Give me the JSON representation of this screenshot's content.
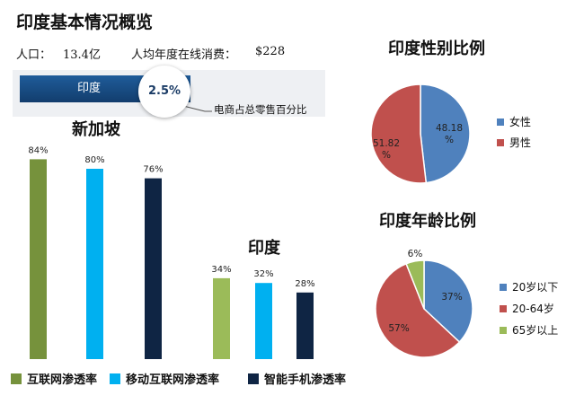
{
  "page": {
    "title": "印度基本情况概览",
    "population_label": "人口：",
    "population_value": "13.4亿",
    "spend_label": "人均年度在线消费：",
    "spend_value": "$228"
  },
  "banner": {
    "country": "印度",
    "value": "2.5%",
    "caption": "电商占总零售百分比"
  },
  "colors": {
    "internet": "#76923c",
    "mobile": "#00b0f0",
    "smartphone": "#0f2544",
    "female": "#4f81bd",
    "male": "#c0504d",
    "age_under20": "#4f81bd",
    "age_20_64": "#c0504d",
    "age_65plus": "#9bbb59",
    "india_internet": "#9bbb59"
  },
  "chart_data": [
    {
      "type": "bar",
      "title": "新加坡",
      "categories": [
        "互联网渗透率",
        "移动互联网渗透率",
        "智能手机渗透率"
      ],
      "values": [
        84,
        80,
        76
      ],
      "labels": [
        "84%",
        "80%",
        "76%"
      ],
      "ylim": [
        0,
        100
      ]
    },
    {
      "type": "bar",
      "title": "印度",
      "categories": [
        "互联网渗透率",
        "移动互联网渗透率",
        "智能手机渗透率"
      ],
      "values": [
        34,
        32,
        28
      ],
      "labels": [
        "34%",
        "32%",
        "28%"
      ],
      "ylim": [
        0,
        100
      ]
    },
    {
      "type": "pie",
      "title": "印度性别比例",
      "categories": [
        "女性",
        "男性"
      ],
      "values": [
        48.18,
        51.82
      ],
      "labels": [
        "48.18\n%",
        "51.82\n%"
      ],
      "legend": "right"
    },
    {
      "type": "pie",
      "title": "印度年龄比例",
      "categories": [
        "20岁以下",
        "20-64岁",
        "65岁以上"
      ],
      "values": [
        37,
        57,
        6
      ],
      "labels": [
        "37%",
        "57%",
        "6%"
      ],
      "legend": "right"
    }
  ],
  "bar_legend": [
    "互联网渗透率",
    "移动互联网渗透率",
    "智能手机渗透率"
  ]
}
